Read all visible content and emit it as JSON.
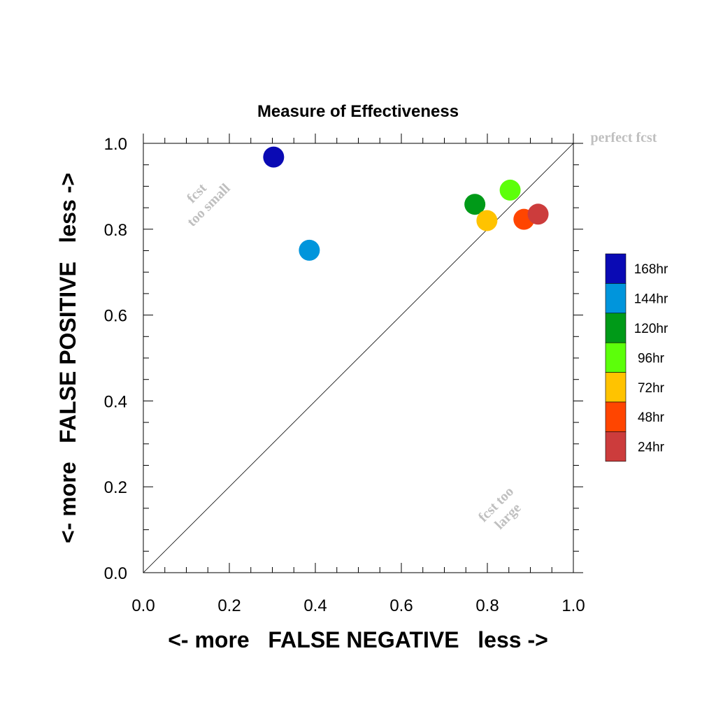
{
  "chart_data": {
    "type": "scatter",
    "title": "Measure of Effectiveness",
    "xlabel": "<- more   FALSE NEGATIVE   less ->",
    "ylabel": "<- more   FALSE POSITIVE   less ->",
    "xlim": [
      0,
      1
    ],
    "ylim": [
      0,
      1
    ],
    "x_ticks": [
      "0.0",
      "0.2",
      "0.4",
      "0.6",
      "0.8",
      "1.0"
    ],
    "y_ticks": [
      "0.0",
      "0.2",
      "0.4",
      "0.6",
      "0.8",
      "1.0"
    ],
    "diagonal_line": true,
    "grid": false,
    "legend_position": "right",
    "annotations": {
      "top_right": "perfect fcst",
      "upper_left_line1": "fcst",
      "upper_left_line2": "too small",
      "lower_right_line1": "fcst too",
      "lower_right_line2": "large"
    },
    "points": [
      {
        "label": "168hr",
        "x": 0.303,
        "y": 0.968,
        "color": "#0a0ab4"
      },
      {
        "label": "144hr",
        "x": 0.386,
        "y": 0.751,
        "color": "#0095dc"
      },
      {
        "label": "120hr",
        "x": 0.771,
        "y": 0.858,
        "color": "#009a18"
      },
      {
        "label": "96hr",
        "x": 0.853,
        "y": 0.891,
        "color": "#5cff0a"
      },
      {
        "label": "72hr",
        "x": 0.799,
        "y": 0.82,
        "color": "#ffc300"
      },
      {
        "label": "48hr",
        "x": 0.885,
        "y": 0.823,
        "color": "#ff4500"
      },
      {
        "label": "24hr",
        "x": 0.918,
        "y": 0.835,
        "color": "#cc3c3c"
      }
    ]
  }
}
